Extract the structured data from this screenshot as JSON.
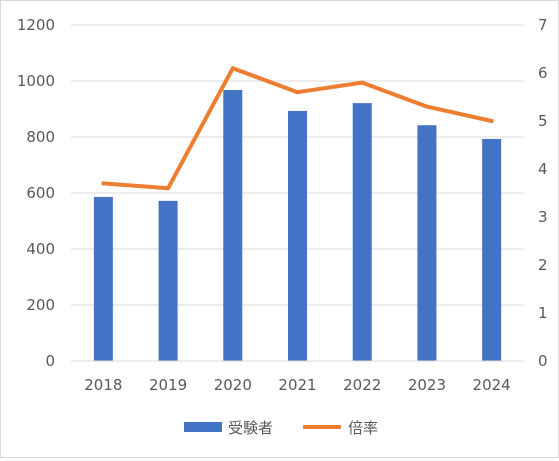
{
  "chart_data": {
    "type": "bar",
    "categories": [
      "2018",
      "2019",
      "2020",
      "2021",
      "2022",
      "2023",
      "2024"
    ],
    "series": [
      {
        "name": "受験者",
        "type": "bar",
        "axis": "left",
        "color": "#4472c4",
        "values": [
          586,
          572,
          968,
          893,
          921,
          842,
          793
        ]
      },
      {
        "name": "倍率",
        "type": "line",
        "axis": "right",
        "color": "#ed7d31",
        "values": [
          3.7,
          3.6,
          6.1,
          5.6,
          5.8,
          5.3,
          5.0
        ]
      }
    ],
    "y_left": {
      "min": 0,
      "max": 1200,
      "ticks": [
        0,
        200,
        400,
        600,
        800,
        1000,
        1200
      ]
    },
    "y_right": {
      "min": 0,
      "max": 7,
      "ticks": [
        0,
        1,
        2,
        3,
        4,
        5,
        6,
        7
      ]
    },
    "grid": true,
    "legend": "bottom"
  }
}
